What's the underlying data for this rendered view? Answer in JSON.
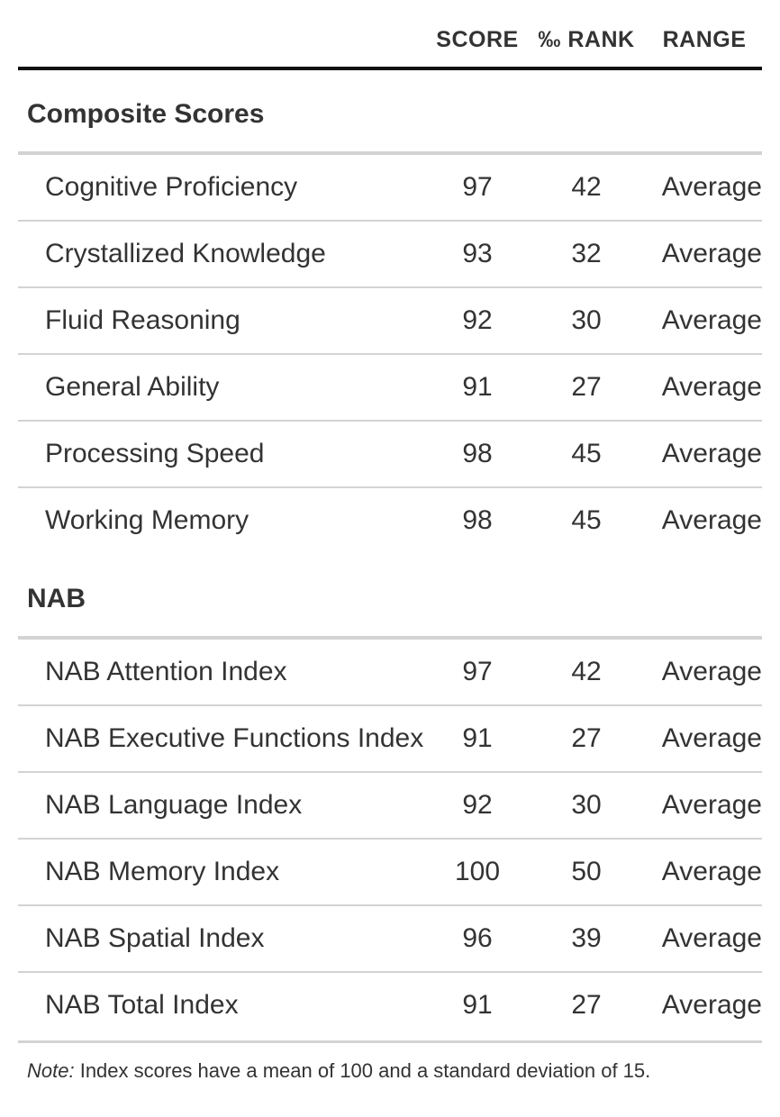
{
  "columns": {
    "score": "SCORE",
    "rank": "‰ RANK",
    "range": "RANGE"
  },
  "groups": [
    {
      "title": "Composite Scores",
      "rows": [
        {
          "label": "Cognitive Proficiency",
          "score": "97",
          "rank": "42",
          "range": "Average"
        },
        {
          "label": "Crystallized Knowledge",
          "score": "93",
          "rank": "32",
          "range": "Average"
        },
        {
          "label": "Fluid Reasoning",
          "score": "92",
          "rank": "30",
          "range": "Average"
        },
        {
          "label": "General Ability",
          "score": "91",
          "rank": "27",
          "range": "Average"
        },
        {
          "label": "Processing Speed",
          "score": "98",
          "rank": "45",
          "range": "Average"
        },
        {
          "label": "Working Memory",
          "score": "98",
          "rank": "45",
          "range": "Average"
        }
      ]
    },
    {
      "title": "NAB",
      "rows": [
        {
          "label": "NAB Attention Index",
          "score": "97",
          "rank": "42",
          "range": "Average"
        },
        {
          "label": "NAB Executive Functions Index",
          "score": "91",
          "rank": "27",
          "range": "Average"
        },
        {
          "label": "NAB Language Index",
          "score": "92",
          "rank": "30",
          "range": "Average"
        },
        {
          "label": "NAB Memory Index",
          "score": "100",
          "rank": "50",
          "range": "Average"
        },
        {
          "label": "NAB Spatial Index",
          "score": "96",
          "rank": "39",
          "range": "Average"
        },
        {
          "label": "NAB Total Index",
          "score": "91",
          "rank": "27",
          "range": "Average"
        }
      ]
    }
  ],
  "note": {
    "prefix": "Note:",
    "text": " Index scores have a mean of 100 and a standard deviation of 15."
  }
}
